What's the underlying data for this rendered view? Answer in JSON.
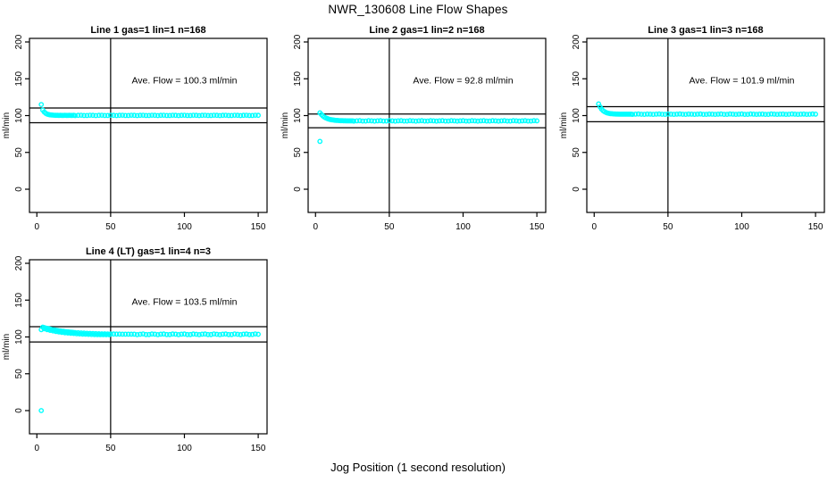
{
  "page": {
    "title": "NWR_130608  Line Flow Shapes",
    "xlabel": "Jog Position (1 second resolution)",
    "ylabel": "ml/min",
    "background": "#FFFFFF",
    "point_color": "#00FFFF",
    "axis_color": "#000000"
  },
  "chart_data": [
    {
      "type": "scatter",
      "title": "Line 1 gas=1 lin=1 n=168",
      "annotation": "Ave. Flow =  100.3  ml/min",
      "ave_flow_ml_min": 100.3,
      "n": 168,
      "ylabel": "ml/min",
      "x_ticks": [
        0,
        50,
        100,
        150
      ],
      "y_ticks": [
        0,
        50,
        100,
        150,
        200
      ],
      "xlim": [
        0,
        155
      ],
      "ylim": [
        0,
        200
      ],
      "vline_x": 50,
      "hlines": [
        110.3,
        90.3
      ],
      "annotation_pos": [
        100,
        147
      ],
      "outliers": [
        [
          3,
          115
        ]
      ],
      "points": [
        [
          4,
          107.5
        ],
        [
          5,
          104.9
        ],
        [
          6,
          103.2
        ],
        [
          7,
          102.1
        ],
        [
          8,
          101.5
        ],
        [
          9,
          101.0
        ],
        [
          10,
          100.8
        ],
        [
          11,
          100.6
        ],
        [
          12,
          100.5
        ],
        [
          13,
          100.4
        ],
        [
          14,
          100.4
        ],
        [
          15,
          100.3
        ],
        [
          16,
          100.4
        ],
        [
          17,
          100.2
        ],
        [
          18,
          100.3
        ],
        [
          19,
          100.5
        ],
        [
          20,
          100.2
        ],
        [
          21,
          100.3
        ],
        [
          22,
          100.4
        ],
        [
          23,
          100.2
        ],
        [
          24,
          100.3
        ],
        [
          25,
          100.4
        ]
      ],
      "flat_run": {
        "from": 26,
        "to": 150,
        "step": 2,
        "y": 100.3,
        "wobble": 0.25
      }
    },
    {
      "type": "scatter",
      "title": "Line 2 gas=1 lin=2 n=168",
      "annotation": "Ave. Flow =  92.8  ml/min",
      "ave_flow_ml_min": 92.8,
      "n": 168,
      "ylabel": "ml/min",
      "x_ticks": [
        0,
        50,
        100,
        150
      ],
      "y_ticks": [
        0,
        50,
        100,
        150,
        200
      ],
      "xlim": [
        0,
        155
      ],
      "ylim": [
        0,
        200
      ],
      "vline_x": 50,
      "hlines": [
        102.1,
        83.5
      ],
      "annotation_pos": [
        100,
        147
      ],
      "outliers": [
        [
          3,
          65
        ]
      ],
      "points": [
        [
          3,
          103.8
        ],
        [
          4,
          101.4
        ],
        [
          5,
          99.5
        ],
        [
          6,
          98.0
        ],
        [
          7,
          96.8
        ],
        [
          8,
          96.0
        ],
        [
          9,
          95.3
        ],
        [
          10,
          94.7
        ],
        [
          11,
          94.3
        ],
        [
          12,
          94.0
        ],
        [
          13,
          93.7
        ],
        [
          14,
          93.5
        ],
        [
          15,
          93.4
        ],
        [
          16,
          93.2
        ],
        [
          17,
          93.1
        ],
        [
          18,
          93.1
        ],
        [
          19,
          93.0
        ],
        [
          20,
          93.0
        ],
        [
          21,
          92.9
        ],
        [
          22,
          92.9
        ],
        [
          23,
          92.9
        ],
        [
          24,
          92.9
        ],
        [
          25,
          92.8
        ]
      ],
      "flat_run": {
        "from": 26,
        "to": 150,
        "step": 2,
        "y": 92.8,
        "wobble": 0.3
      }
    },
    {
      "type": "scatter",
      "title": "Line 3 gas=1 lin=3 n=168",
      "annotation": "Ave. Flow =  101.9  ml/min",
      "ave_flow_ml_min": 101.9,
      "n": 168,
      "ylabel": "ml/min",
      "x_ticks": [
        0,
        50,
        100,
        150
      ],
      "y_ticks": [
        0,
        50,
        100,
        150,
        200
      ],
      "xlim": [
        0,
        155
      ],
      "ylim": [
        0,
        200
      ],
      "vline_x": 50,
      "hlines": [
        112.1,
        91.7
      ],
      "annotation_pos": [
        100,
        147
      ],
      "outliers": [],
      "points": [
        [
          3,
          115.9
        ],
        [
          4,
          111.7
        ],
        [
          5,
          108.8
        ],
        [
          6,
          106.7
        ],
        [
          7,
          105.3
        ],
        [
          8,
          104.2
        ],
        [
          9,
          103.5
        ],
        [
          10,
          103.0
        ],
        [
          11,
          102.7
        ],
        [
          12,
          102.5
        ],
        [
          13,
          102.3
        ],
        [
          14,
          102.2
        ],
        [
          15,
          102.1
        ],
        [
          16,
          102.1
        ],
        [
          17,
          102.0
        ],
        [
          18,
          102.0
        ],
        [
          19,
          101.9
        ],
        [
          20,
          102.0
        ],
        [
          21,
          101.9
        ],
        [
          22,
          101.9
        ],
        [
          23,
          102.0
        ],
        [
          24,
          101.9
        ],
        [
          25,
          101.9
        ]
      ],
      "flat_run": {
        "from": 26,
        "to": 150,
        "step": 2,
        "y": 101.9,
        "wobble": 0.25
      }
    },
    {
      "type": "scatter",
      "title": "Line 4 (LT) gas=1 lin=4 n=3",
      "annotation": "Ave. Flow =  103.5  ml/min",
      "ave_flow_ml_min": 103.5,
      "n": 3,
      "ylabel": "ml/min",
      "x_ticks": [
        0,
        50,
        100,
        150
      ],
      "y_ticks": [
        0,
        50,
        100,
        150,
        200
      ],
      "xlim": [
        0,
        155
      ],
      "ylim": [
        0,
        200
      ],
      "vline_x": 50,
      "hlines": [
        113.9,
        93.2
      ],
      "annotation_pos": [
        100,
        147
      ],
      "outliers": [
        [
          3,
          0
        ],
        [
          3,
          110
        ]
      ],
      "points": [
        [
          4,
          113.3
        ],
        [
          5,
          112.7
        ],
        [
          6,
          112.1
        ],
        [
          7,
          111.6
        ],
        [
          8,
          111.1
        ],
        [
          9,
          110.7
        ],
        [
          10,
          110.2
        ],
        [
          11,
          109.8
        ],
        [
          12,
          109.4
        ],
        [
          13,
          109.1
        ],
        [
          14,
          108.7
        ],
        [
          15,
          108.4
        ],
        [
          16,
          108.1
        ],
        [
          17,
          107.8
        ],
        [
          18,
          107.6
        ],
        [
          19,
          107.3
        ],
        [
          20,
          107.1
        ],
        [
          21,
          106.9
        ],
        [
          22,
          106.7
        ],
        [
          23,
          106.5
        ],
        [
          24,
          106.3
        ],
        [
          25,
          106.1
        ],
        [
          26,
          106.0
        ],
        [
          28,
          105.7
        ],
        [
          30,
          105.4
        ],
        [
          32,
          105.2
        ],
        [
          34,
          105.0
        ],
        [
          36,
          104.8
        ],
        [
          38,
          104.7
        ],
        [
          40,
          104.5
        ],
        [
          42,
          104.4
        ],
        [
          44,
          104.3
        ],
        [
          46,
          104.2
        ],
        [
          48,
          104.1
        ],
        [
          50,
          104.0
        ],
        [
          52,
          104.0
        ],
        [
          54,
          103.9
        ],
        [
          56,
          103.9
        ],
        [
          58,
          103.8
        ],
        [
          60,
          103.8
        ],
        [
          62,
          103.8
        ],
        [
          64,
          103.7
        ],
        [
          5,
          111.2
        ],
        [
          7,
          110.0
        ],
        [
          9,
          109.0
        ],
        [
          11,
          108.2
        ],
        [
          13,
          107.4
        ],
        [
          15,
          106.8
        ],
        [
          17,
          106.2
        ],
        [
          19,
          105.7
        ],
        [
          21,
          105.3
        ],
        [
          23,
          105.0
        ],
        [
          25,
          104.7
        ],
        [
          27,
          104.4
        ],
        [
          29,
          104.1
        ],
        [
          31,
          103.9
        ],
        [
          33,
          103.7
        ],
        [
          35,
          103.5
        ],
        [
          37,
          103.4
        ],
        [
          39,
          103.3
        ],
        [
          41,
          103.2
        ],
        [
          43,
          103.1
        ],
        [
          45,
          103.1
        ],
        [
          47,
          103.0
        ],
        [
          49,
          103.0
        ]
      ],
      "flat_run": {
        "from": 66,
        "to": 150,
        "step": 2,
        "y": 103.6,
        "wobble": 0.5
      }
    }
  ]
}
